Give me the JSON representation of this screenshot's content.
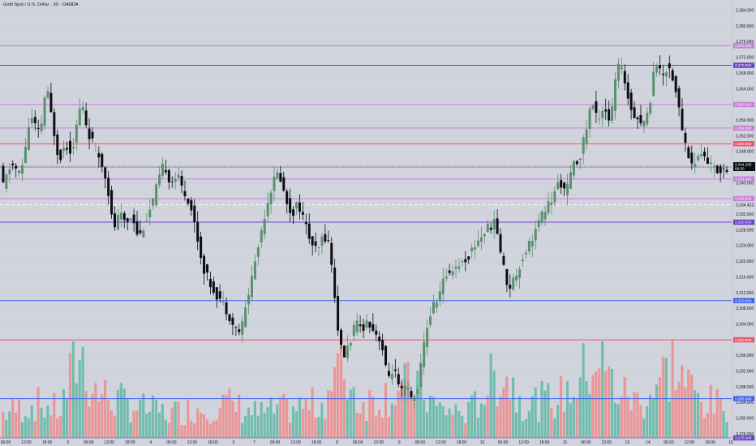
{
  "title": "Gold Spot / U.S. Dollar · 30 · OANDA",
  "colors": {
    "background": "#d1d4dc",
    "up": "#5a8f6f",
    "down": "#0b0d12",
    "volume_up": "#5fb8a5",
    "volume_down": "#ef8a8a",
    "current_price_line": "#ffffff"
  },
  "chart_data": {
    "type": "candlestick",
    "symbol": "XAUUSD",
    "timeframe": "30",
    "x_tick_labels": [
      "06:00",
      "12:00",
      "18:00",
      "3",
      "06:00",
      "12:00",
      "18:00",
      "4",
      "06:00",
      "12:00",
      "18:00",
      "6",
      "7",
      "06:00",
      "12:00",
      "18:00",
      "8",
      "06:00",
      "12:00",
      "9",
      "06:00",
      "12:00",
      "18:00",
      "10",
      "06:00",
      "12:00",
      "18:00",
      "11",
      "06:00",
      "12:00",
      "13",
      "14",
      "06:00",
      "12:00",
      "18:00",
      "15"
    ],
    "y_tick_labels": [
      "3,384.000",
      "3,380.000",
      "3,376.000",
      "3,372.000",
      "3,368.000",
      "3,364.000",
      "3,360.000",
      "3,356.000",
      "3,352.000",
      "3,348.000",
      "3,344.000",
      "3,340.000",
      "3,336.000",
      "3,332.000",
      "3,328.000",
      "3,324.000",
      "3,320.000",
      "3,316.000",
      "3,312.000",
      "3,308.000",
      "3,304.000",
      "3,300.000",
      "3,296.000",
      "3,292.000",
      "3,288.000",
      "3,284.000",
      "3,280.000",
      "3,276.000"
    ],
    "ylim": [
      3275,
      3385
    ],
    "horizontal_levels": [
      {
        "label": "3,375.000",
        "value": 3375,
        "color": "#c47fd8"
      },
      {
        "label": "3,370.000",
        "value": 3370,
        "color": "#6a3ec9"
      },
      {
        "label": "3,360.000",
        "value": 3360,
        "color": "#c47fd8"
      },
      {
        "label": "3,354.000",
        "value": 3354,
        "color": "#c47fd8"
      },
      {
        "label": "3,350.000",
        "value": 3350,
        "color": "#ef5366"
      },
      {
        "label": "3,344.000",
        "value": 3344,
        "color": "#c47fd8"
      },
      {
        "label": "3,341.000",
        "value": 3341,
        "color": "#c47fd8"
      },
      {
        "label": "3,336.000",
        "value": 3336,
        "color": "#c47fd8"
      },
      {
        "label": "3,330.000",
        "value": 3330,
        "color": "#6a3ec9"
      },
      {
        "label": "3,310.000",
        "value": 3310,
        "color": "#3b62f0"
      },
      {
        "label": "3,300.000",
        "value": 3300,
        "color": "#ef5366"
      },
      {
        "label": "3,285.000",
        "value": 3285,
        "color": "#3b62f0"
      },
      {
        "label": "3,275.000",
        "value": 3275,
        "color": "#6a3ec9"
      }
    ],
    "current_price": {
      "value": 3344.265,
      "label": "3,344.265",
      "countdown": "08:30"
    },
    "dashed_level": {
      "value": 3334.423,
      "label": "3,334.423"
    },
    "price_path": [
      [
        0,
        3338
      ],
      [
        3,
        3345
      ],
      [
        6,
        3342
      ],
      [
        9,
        3357
      ],
      [
        12,
        3352
      ],
      [
        14,
        3365
      ],
      [
        16,
        3355
      ],
      [
        18,
        3346
      ],
      [
        20,
        3350
      ],
      [
        22,
        3348
      ],
      [
        25,
        3361
      ],
      [
        27,
        3353
      ],
      [
        30,
        3348
      ],
      [
        33,
        3341
      ],
      [
        35,
        3328
      ],
      [
        37,
        3332
      ],
      [
        39,
        3330
      ],
      [
        41,
        3332
      ],
      [
        43,
        3326
      ],
      [
        45,
        3330
      ],
      [
        47,
        3334
      ],
      [
        49,
        3340
      ],
      [
        51,
        3345
      ],
      [
        53,
        3340
      ],
      [
        55,
        3342
      ],
      [
        57,
        3338
      ],
      [
        59,
        3335
      ],
      [
        61,
        3328
      ],
      [
        63,
        3319
      ],
      [
        65,
        3315
      ],
      [
        67,
        3312
      ],
      [
        69,
        3310
      ],
      [
        71,
        3307
      ],
      [
        73,
        3303
      ],
      [
        75,
        3302
      ],
      [
        77,
        3310
      ],
      [
        79,
        3318
      ],
      [
        81,
        3326
      ],
      [
        83,
        3334
      ],
      [
        85,
        3340
      ],
      [
        87,
        3343
      ],
      [
        89,
        3336
      ],
      [
        91,
        3332
      ],
      [
        93,
        3335
      ],
      [
        95,
        3330
      ],
      [
        97,
        3325
      ],
      [
        99,
        3322
      ],
      [
        101,
        3327
      ],
      [
        103,
        3324
      ],
      [
        105,
        3306
      ],
      [
        107,
        3295
      ],
      [
        109,
        3299
      ],
      [
        111,
        3304
      ],
      [
        113,
        3303
      ],
      [
        115,
        3305
      ],
      [
        117,
        3302
      ],
      [
        119,
        3300
      ],
      [
        121,
        3290
      ],
      [
        123,
        3293
      ],
      [
        125,
        3286
      ],
      [
        127,
        3288
      ],
      [
        129,
        3284
      ],
      [
        131,
        3290
      ],
      [
        133,
        3302
      ],
      [
        135,
        3308
      ],
      [
        137,
        3311
      ],
      [
        139,
        3316
      ],
      [
        141,
        3318
      ],
      [
        143,
        3319
      ],
      [
        145,
        3320
      ],
      [
        147,
        3322
      ],
      [
        149,
        3325
      ],
      [
        151,
        3327
      ],
      [
        153,
        3329
      ],
      [
        155,
        3330
      ],
      [
        157,
        3320
      ],
      [
        159,
        3313
      ],
      [
        161,
        3316
      ],
      [
        163,
        3320
      ],
      [
        165,
        3324
      ],
      [
        167,
        3327
      ],
      [
        169,
        3331
      ],
      [
        171,
        3334
      ],
      [
        173,
        3336
      ],
      [
        175,
        3341
      ],
      [
        177,
        3337
      ],
      [
        179,
        3344
      ],
      [
        181,
        3346
      ],
      [
        183,
        3352
      ],
      [
        185,
        3361
      ],
      [
        187,
        3356
      ],
      [
        189,
        3360
      ],
      [
        191,
        3355
      ],
      [
        193,
        3370
      ],
      [
        195,
        3368
      ],
      [
        197,
        3360
      ],
      [
        199,
        3357
      ],
      [
        201,
        3355
      ],
      [
        203,
        3358
      ],
      [
        205,
        3372
      ],
      [
        207,
        3367
      ],
      [
        209,
        3370
      ],
      [
        211,
        3366
      ],
      [
        213,
        3356
      ],
      [
        215,
        3348
      ],
      [
        217,
        3344
      ],
      [
        219,
        3348
      ],
      [
        221,
        3346
      ],
      [
        223,
        3344
      ],
      [
        225,
        3343
      ],
      [
        227,
        3344
      ]
    ],
    "volume_profile": [
      [
        0,
        0.25
      ],
      [
        10,
        0.35
      ],
      [
        18,
        0.28
      ],
      [
        24,
        0.9
      ],
      [
        28,
        0.5
      ],
      [
        34,
        0.4
      ],
      [
        44,
        0.3
      ],
      [
        52,
        0.25
      ],
      [
        60,
        0.3
      ],
      [
        70,
        0.35
      ],
      [
        80,
        0.25
      ],
      [
        90,
        0.3
      ],
      [
        100,
        0.35
      ],
      [
        106,
        0.75
      ],
      [
        112,
        0.35
      ],
      [
        120,
        0.45
      ],
      [
        130,
        0.55
      ],
      [
        136,
        0.3
      ],
      [
        146,
        0.25
      ],
      [
        156,
        0.7
      ],
      [
        164,
        0.35
      ],
      [
        174,
        0.4
      ],
      [
        180,
        0.55
      ],
      [
        186,
        0.85
      ],
      [
        192,
        0.5
      ],
      [
        200,
        0.35
      ],
      [
        210,
        0.75
      ],
      [
        218,
        0.4
      ],
      [
        227,
        0.3
      ]
    ]
  }
}
